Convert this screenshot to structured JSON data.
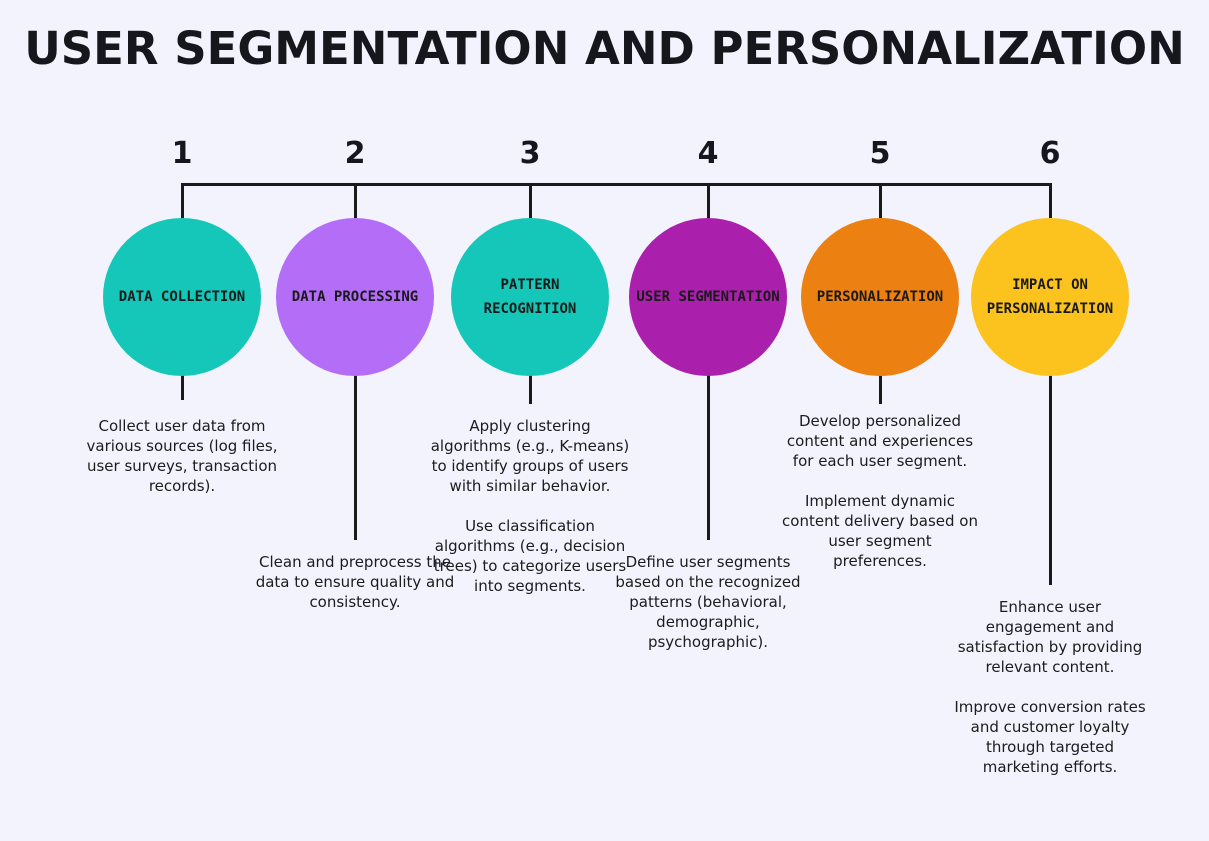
{
  "title": "USER SEGMENTATION AND PERSONALIZATION",
  "steps": [
    {
      "number": "1",
      "label": "DATA COLLECTION",
      "color": "#14c7b8",
      "paragraphs": [
        "Collect user data from various sources (log files, user surveys, transaction records)."
      ]
    },
    {
      "number": "2",
      "label": "DATA PROCESSING",
      "color": "#b36df7",
      "paragraphs": [
        "Clean and preprocess the data to ensure quality and consistency."
      ]
    },
    {
      "number": "3",
      "label": "PATTERN RECOGNITION",
      "color": "#14c7b8",
      "paragraphs": [
        "Apply clustering algorithms (e.g., K-means) to identify groups of users with similar behavior.",
        "Use classification algorithms (e.g., decision trees) to categorize users into segments."
      ]
    },
    {
      "number": "4",
      "label": "USER SEGMENTATION",
      "color": "#aa1fab",
      "paragraphs": [
        "Define user segments based on the recognized patterns (behavioral, demographic, psychographic)."
      ]
    },
    {
      "number": "5",
      "label": "PERSONALIZATION",
      "color": "#ec8010",
      "paragraphs": [
        "Develop personalized content and experiences for each user segment.",
        "Implement dynamic content delivery based on user segment preferences."
      ]
    },
    {
      "number": "6",
      "label": "IMPACT ON PERSONALIZATION",
      "color": "#fcc31e",
      "paragraphs": [
        "Enhance user engagement and satisfaction by providing relevant content.",
        "Improve conversion rates and customer loyalty through targeted marketing efforts."
      ]
    }
  ]
}
